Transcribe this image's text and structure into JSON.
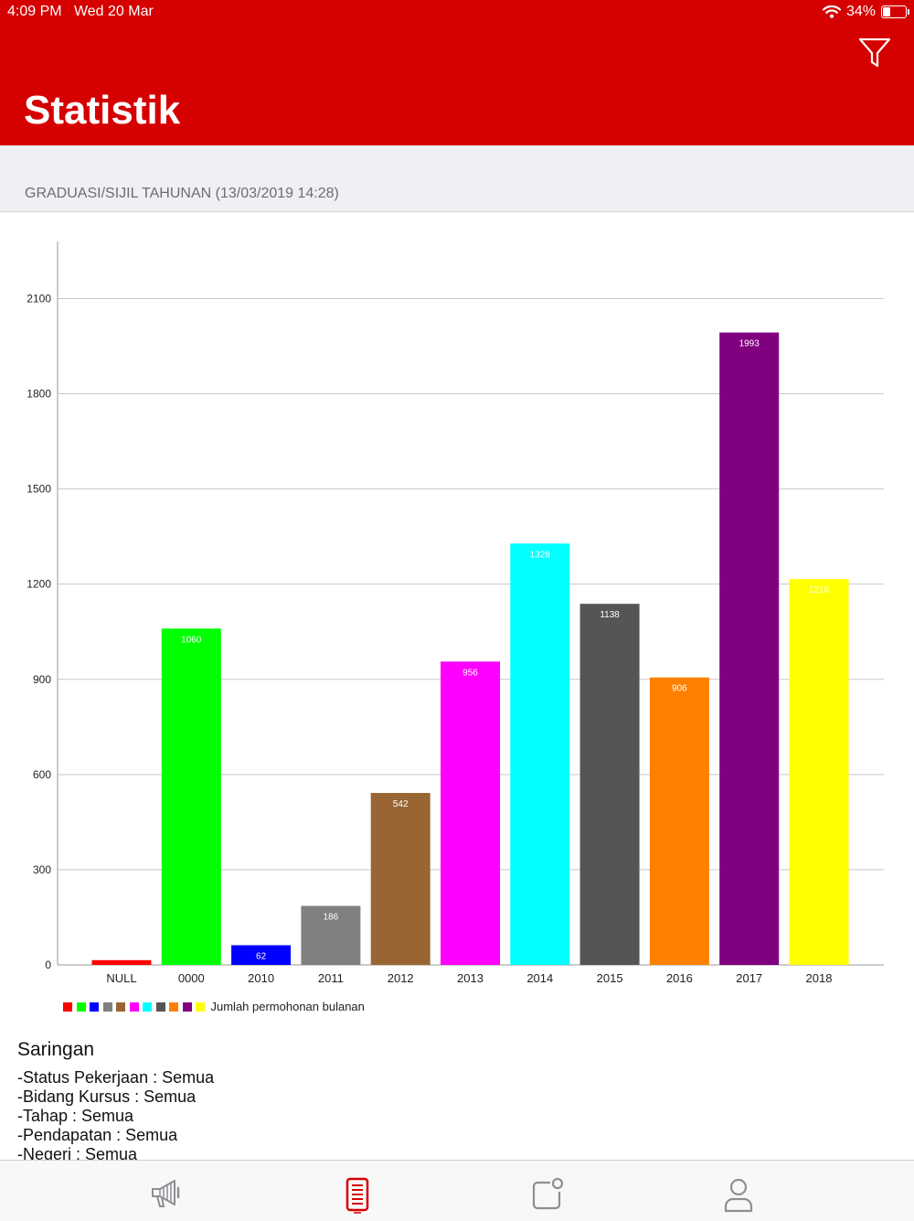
{
  "status_bar": {
    "time": "4:09 PM",
    "date": "Wed 20 Mar",
    "battery": "34%",
    "battery_level": 0.34
  },
  "header": {
    "title": "Statistik",
    "filter_icon": "filter-icon"
  },
  "section": {
    "subtitle": "GRADUASI/SIJIL TAHUNAN (13/03/2019 14:28)"
  },
  "chart_data": {
    "type": "bar",
    "categories": [
      "NULL",
      "0000",
      "2010",
      "2011",
      "2012",
      "2013",
      "2014",
      "2015",
      "2016",
      "2017",
      "2018"
    ],
    "values": [
      15,
      1060,
      62,
      186,
      542,
      956,
      1328,
      1138,
      906,
      1993,
      1216
    ],
    "data_labels": [
      "",
      "1060",
      "62",
      "186",
      "542",
      "956",
      "1328",
      "1138",
      "906",
      "1993",
      "1216"
    ],
    "colors": [
      "#ff0000",
      "#00ff00",
      "#0000ff",
      "#808080",
      "#996633",
      "#ff00ff",
      "#00ffff",
      "#555555",
      "#ff8000",
      "#800080",
      "#ffff00"
    ],
    "yticks": [
      0,
      300,
      600,
      900,
      1200,
      1500,
      1800,
      2100
    ],
    "ylim": [
      0,
      2280
    ],
    "grid": true,
    "legend": "bottom-left",
    "series": [
      {
        "name": "Jumlah permohonan bulanan"
      }
    ]
  },
  "filters": {
    "title": "Saringan",
    "lines": [
      "-Status Pekerjaan : Semua",
      "-Bidang Kursus : Semua",
      "-Tahap : Semua",
      "-Pendapatan : Semua",
      "-Negeri : Semua"
    ]
  },
  "tabbar": {
    "icons": [
      "megaphone-icon",
      "document-list-icon",
      "notification-icon",
      "profile-icon"
    ],
    "active_index": 1,
    "active_color": "#d50000",
    "inactive_color": "#8e8e93"
  }
}
